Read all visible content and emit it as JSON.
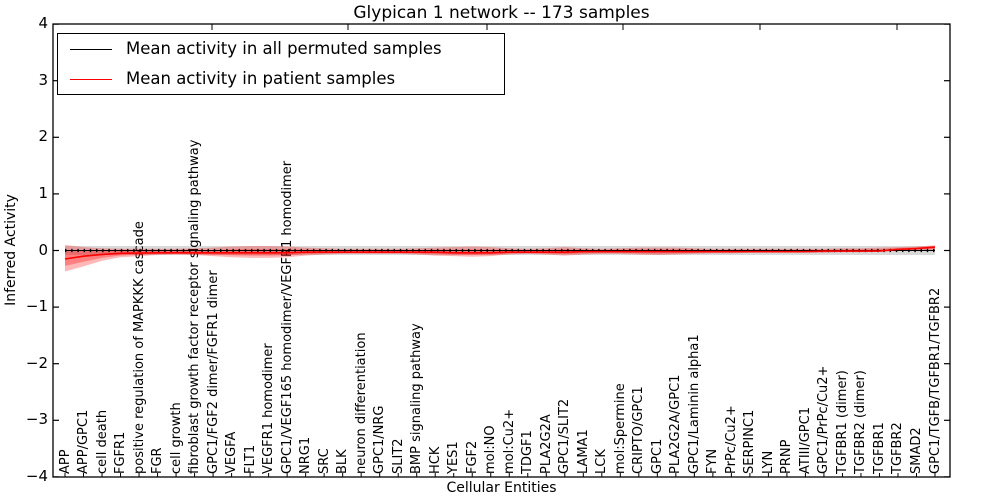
{
  "figure": {
    "title": "Glypican 1 network -- 173 samples",
    "xlabel": "Cellular Entities",
    "ylabel": "Inferred Activity",
    "y_tick_labels": [
      "4",
      "3",
      "2",
      "1",
      "0",
      "−1",
      "−2",
      "−3",
      "−4"
    ]
  },
  "legend": {
    "entries": [
      {
        "label": "Mean activity in all permuted samples",
        "color": "#000000"
      },
      {
        "label": "Mean activity in patient samples",
        "color": "#ff0000"
      }
    ]
  },
  "chart_data": {
    "type": "line",
    "title": "Glypican 1 network -- 173 samples",
    "xlabel": "Cellular Entities",
    "ylabel": "Inferred Activity",
    "ylim": [
      -4,
      4
    ],
    "y_ticks": [
      4,
      3,
      2,
      1,
      0,
      -1,
      -2,
      -3,
      -4
    ],
    "grid": false,
    "legend_position": "upper left",
    "categories": [
      "APP",
      "APP/GPC1",
      "cell death",
      "FGFR1",
      "positive regulation of MAPKKK cascade",
      "FGR",
      "cell growth",
      "fibroblast growth factor receptor signaling pathway",
      "GPC1/FGF2 dimer/FGFR1 dimer",
      "VEGFA",
      "FLT1",
      "VEGFR1 homodimer",
      "GPC1/VEGF165 homodimer/VEGFR1 homodimer",
      "NRG1",
      "SRC",
      "BLK",
      "neuron differentiation",
      "GPC1/NRG",
      "SLIT2",
      "BMP signaling pathway",
      "HCK",
      "YES1",
      "FGF2",
      "mol:NO",
      "mol:Cu2+",
      "TDGF1",
      "PLA2G2A",
      "GPC1/SLIT2",
      "LAMA1",
      "LCK",
      "mol:Spermine",
      "CRIPTO/GPC1",
      "GPC1",
      "PLA2G2A/GPC1",
      "GPC1/Laminin alpha1",
      "FYN",
      "PrPc/Cu2+",
      "SERPINC1",
      "LYN",
      "PRNP",
      "ATIII/GPC1",
      "GPC1/PrPc/Cu2+",
      "TGFBR1 (dimer)",
      "TGFBR2 (dimer)",
      "TGFBR1",
      "TGFBR2",
      "SMAD2",
      "GPC1/TGFB/TGFBR1/TGFBR2"
    ],
    "series": [
      {
        "name": "Mean activity in all permuted samples",
        "color": "#000000",
        "mean": 0.0,
        "band": 0.08
      },
      {
        "name": "Mean activity in patient samples",
        "color": "#ff0000",
        "values": [
          -0.15,
          -0.1,
          -0.07,
          -0.05,
          -0.045,
          -0.04,
          -0.04,
          -0.04,
          -0.04,
          -0.04,
          -0.04,
          -0.04,
          -0.04,
          -0.03,
          -0.03,
          -0.03,
          -0.03,
          -0.03,
          -0.03,
          -0.03,
          -0.03,
          -0.04,
          -0.04,
          -0.04,
          -0.03,
          -0.03,
          -0.03,
          -0.03,
          -0.02,
          -0.02,
          -0.02,
          -0.02,
          -0.02,
          -0.02,
          -0.02,
          -0.02,
          -0.02,
          -0.02,
          -0.02,
          -0.02,
          -0.02,
          -0.01,
          -0.01,
          -0.01,
          -0.01,
          0.02,
          0.035,
          0.06
        ],
        "band_upper": [
          0.1,
          0.06,
          0.04,
          0.03,
          0.03,
          0.03,
          0.03,
          0.04,
          0.05,
          0.07,
          0.08,
          0.08,
          0.07,
          0.05,
          0.04,
          0.03,
          0.03,
          0.03,
          0.03,
          0.04,
          0.05,
          0.06,
          0.07,
          0.06,
          0.04,
          0.03,
          0.04,
          0.06,
          0.04,
          0.03,
          0.04,
          0.05,
          0.05,
          0.05,
          0.04,
          0.03,
          0.03,
          0.03,
          0.03,
          0.03,
          0.03,
          0.03,
          0.04,
          0.04,
          0.05,
          0.06,
          0.07,
          0.09
        ],
        "band_lower": [
          -0.37,
          -0.28,
          -0.18,
          -0.12,
          -0.1,
          -0.08,
          -0.07,
          -0.08,
          -0.1,
          -0.12,
          -0.13,
          -0.13,
          -0.12,
          -0.09,
          -0.07,
          -0.06,
          -0.06,
          -0.06,
          -0.06,
          -0.07,
          -0.09,
          -0.1,
          -0.11,
          -0.1,
          -0.07,
          -0.06,
          -0.07,
          -0.09,
          -0.07,
          -0.06,
          -0.06,
          -0.07,
          -0.08,
          -0.07,
          -0.06,
          -0.05,
          -0.05,
          -0.04,
          -0.04,
          -0.04,
          -0.04,
          -0.04,
          -0.03,
          -0.03,
          -0.02,
          -0.01,
          0.0,
          0.01
        ]
      }
    ]
  }
}
